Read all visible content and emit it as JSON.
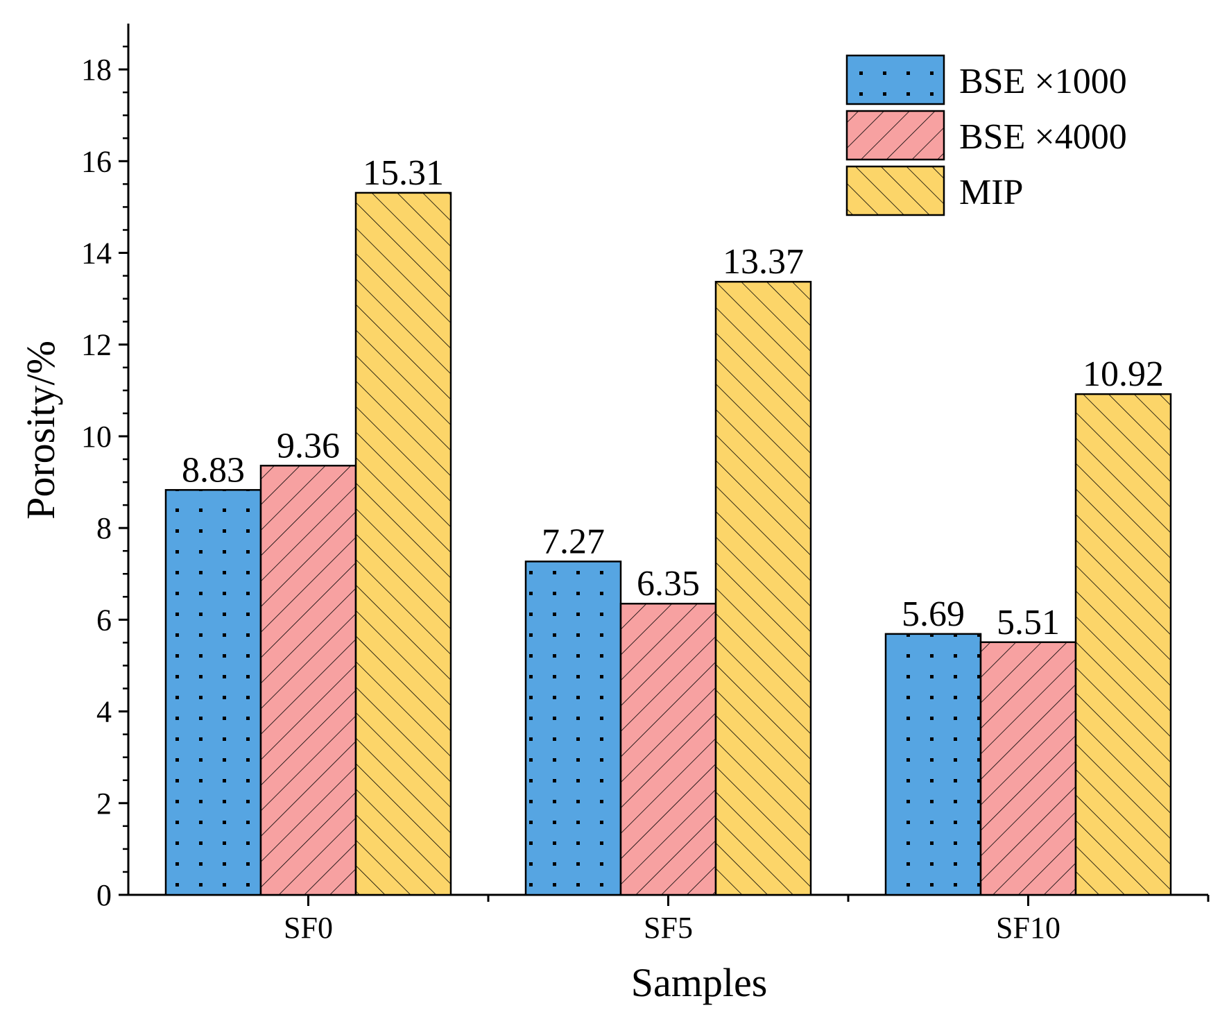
{
  "chart_data": {
    "type": "bar",
    "categories": [
      "SF0",
      "SF5",
      "SF10"
    ],
    "series": [
      {
        "name": "BSE ×1000",
        "values": [
          8.83,
          7.27,
          5.69
        ],
        "color": "#56a5e2",
        "pattern": "dots"
      },
      {
        "name": "BSE ×4000",
        "values": [
          9.36,
          6.35,
          5.51
        ],
        "color": "#f7a1a1",
        "pattern": "forward-hatch"
      },
      {
        "name": "MIP",
        "values": [
          15.31,
          13.37,
          10.92
        ],
        "color": "#fcd569",
        "pattern": "back-hatch"
      }
    ],
    "data_labels": [
      [
        "8.83",
        "7.27",
        "5.69"
      ],
      [
        "9.36",
        "6.35",
        "5.51"
      ],
      [
        "15.31",
        "13.37",
        "10.92"
      ]
    ],
    "title": "",
    "xlabel": "Samples",
    "ylabel": "Porosity/%",
    "ylim": [
      0,
      19
    ],
    "yticks": [
      0,
      2,
      4,
      6,
      8,
      10,
      12,
      14,
      16,
      18
    ],
    "ytick_labels": [
      "0",
      "2",
      "4",
      "6",
      "8",
      "10",
      "12",
      "14",
      "16",
      "18"
    ],
    "legend_position": "top-right",
    "grid": false
  }
}
